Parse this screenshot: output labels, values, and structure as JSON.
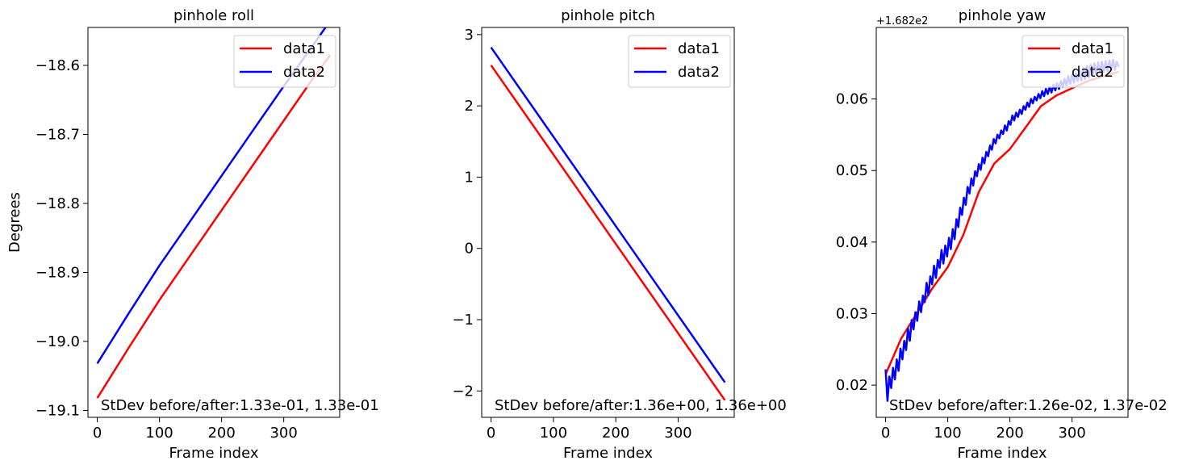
{
  "chart_data": [
    {
      "type": "line",
      "title": "pinhole roll",
      "xlabel": "Frame index",
      "ylabel": "Degrees",
      "xlim": [
        -15,
        390
      ],
      "ylim": [
        -19.11,
        -18.545
      ],
      "xticks": [
        0,
        100,
        200,
        300
      ],
      "xtick_labels": [
        "0",
        "100",
        "200",
        "300"
      ],
      "yticks": [
        -19.1,
        -19.0,
        -18.9,
        -18.8,
        -18.7,
        -18.6
      ],
      "ytick_labels": [
        "−19.1",
        "−19.0",
        "−18.9",
        "−18.8",
        "−18.7",
        "−18.6"
      ],
      "offset_text": "",
      "legend_position": "top-right",
      "annotation": "StDev before/after:1.33e-01, 1.33e-01",
      "series": [
        {
          "name": "data1",
          "color": "#ff0000",
          "x": [
            0,
            50,
            100,
            150,
            200,
            250,
            300,
            350,
            375
          ],
          "y": [
            -19.082,
            -19.01,
            -18.94,
            -18.875,
            -18.81,
            -18.745,
            -18.68,
            -18.615,
            -18.585
          ]
        },
        {
          "name": "data2",
          "color": "#0000ff",
          "x": [
            0,
            50,
            100,
            150,
            200,
            250,
            300,
            350,
            375
          ],
          "y": [
            -19.032,
            -18.96,
            -18.89,
            -18.825,
            -18.76,
            -18.695,
            -18.63,
            -18.567,
            -18.535
          ]
        }
      ]
    },
    {
      "type": "line",
      "title": "pinhole pitch",
      "xlabel": "Frame index",
      "ylabel": "",
      "xlim": [
        -15,
        390
      ],
      "ylim": [
        -2.37,
        3.1
      ],
      "xticks": [
        0,
        100,
        200,
        300
      ],
      "xtick_labels": [
        "0",
        "100",
        "200",
        "300"
      ],
      "yticks": [
        -2,
        -1,
        0,
        1,
        2,
        3
      ],
      "ytick_labels": [
        "−2",
        "−1",
        "0",
        "1",
        "2",
        "3"
      ],
      "offset_text": "",
      "legend_position": "top-right",
      "annotation": "StDev before/after:1.36e+00, 1.36e+00",
      "series": [
        {
          "name": "data1",
          "color": "#ff0000",
          "x": [
            0,
            375
          ],
          "y": [
            2.57,
            -2.13
          ]
        },
        {
          "name": "data2",
          "color": "#0000ff",
          "x": [
            0,
            375
          ],
          "y": [
            2.82,
            -1.88
          ]
        }
      ]
    },
    {
      "type": "line",
      "title": "pinhole yaw",
      "xlabel": "Frame index",
      "ylabel": "",
      "xlim": [
        -15,
        390
      ],
      "ylim": [
        0.0155,
        0.07
      ],
      "xticks": [
        0,
        100,
        200,
        300
      ],
      "xtick_labels": [
        "0",
        "100",
        "200",
        "300"
      ],
      "yticks": [
        0.02,
        0.03,
        0.04,
        0.05,
        0.06
      ],
      "ytick_labels": [
        "0.02",
        "0.03",
        "0.04",
        "0.05",
        "0.06"
      ],
      "offset_text": "+1.682e2",
      "legend_position": "top-right",
      "annotation": "StDev before/after:1.26e-02, 1.37e-02",
      "series": [
        {
          "name": "data1",
          "color": "#ff0000",
          "x": [
            0,
            25,
            50,
            75,
            100,
            125,
            150,
            175,
            200,
            225,
            250,
            275,
            300,
            325,
            350,
            375
          ],
          "y": [
            0.0215,
            0.0265,
            0.03,
            0.0335,
            0.0365,
            0.041,
            0.047,
            0.051,
            0.053,
            0.056,
            0.059,
            0.0605,
            0.0615,
            0.0625,
            0.0632,
            0.0638
          ]
        },
        {
          "name": "data2",
          "color": "#0000ff",
          "x": [
            0,
            3,
            6,
            9,
            12,
            15,
            18,
            21,
            24,
            27,
            30,
            33,
            36,
            39,
            42,
            45,
            48,
            51,
            54,
            57,
            60,
            63,
            66,
            69,
            72,
            75,
            78,
            81,
            84,
            87,
            90,
            93,
            96,
            99,
            102,
            105,
            108,
            111,
            114,
            117,
            120,
            123,
            126,
            129,
            132,
            135,
            138,
            141,
            144,
            147,
            150,
            153,
            156,
            159,
            162,
            165,
            168,
            171,
            174,
            177,
            180,
            183,
            186,
            189,
            192,
            195,
            198,
            201,
            204,
            207,
            210,
            213,
            216,
            219,
            222,
            225,
            228,
            231,
            234,
            237,
            240,
            243,
            246,
            249,
            252,
            255,
            258,
            261,
            264,
            267,
            270,
            273,
            276,
            279,
            282,
            285,
            288,
            291,
            294,
            297,
            300,
            303,
            306,
            309,
            312,
            315,
            318,
            321,
            324,
            327,
            330,
            333,
            336,
            339,
            342,
            345,
            348,
            351,
            354,
            357,
            360,
            363,
            366,
            369,
            372,
            375
          ],
          "y": [
            0.0222,
            0.0178,
            0.0212,
            0.0196,
            0.0224,
            0.0208,
            0.0236,
            0.022,
            0.0251,
            0.0236,
            0.0262,
            0.0249,
            0.0279,
            0.0262,
            0.0291,
            0.0278,
            0.0302,
            0.029,
            0.0317,
            0.0302,
            0.0325,
            0.0316,
            0.0343,
            0.0326,
            0.0352,
            0.0341,
            0.0367,
            0.035,
            0.0375,
            0.0364,
            0.0389,
            0.037,
            0.0395,
            0.038,
            0.0406,
            0.039,
            0.0418,
            0.0404,
            0.0432,
            0.0421,
            0.0448,
            0.0438,
            0.0462,
            0.0452,
            0.0477,
            0.0468,
            0.0489,
            0.0479,
            0.0499,
            0.0492,
            0.0509,
            0.0501,
            0.0518,
            0.051,
            0.0526,
            0.052,
            0.0535,
            0.0529,
            0.0544,
            0.0538,
            0.055,
            0.0545,
            0.0556,
            0.0551,
            0.0563,
            0.0556,
            0.0569,
            0.0564,
            0.0577,
            0.057,
            0.0581,
            0.0575,
            0.0585,
            0.0579,
            0.059,
            0.0585,
            0.0595,
            0.0589,
            0.06,
            0.0594,
            0.0603,
            0.0598,
            0.0607,
            0.0601,
            0.0611,
            0.0604,
            0.0614,
            0.0607,
            0.0617,
            0.0609,
            0.062,
            0.0612,
            0.0622,
            0.0614,
            0.0625,
            0.0617,
            0.0628,
            0.0619,
            0.0632,
            0.0621,
            0.0634,
            0.0623,
            0.0636,
            0.0625,
            0.064,
            0.0626,
            0.0643,
            0.0628,
            0.0646,
            0.063,
            0.0648,
            0.0632,
            0.065,
            0.0634,
            0.0651,
            0.0636,
            0.0652,
            0.0638,
            0.0653,
            0.0639,
            0.0654,
            0.064,
            0.0655,
            0.0641,
            0.0652,
            0.0645
          ]
        }
      ]
    }
  ]
}
